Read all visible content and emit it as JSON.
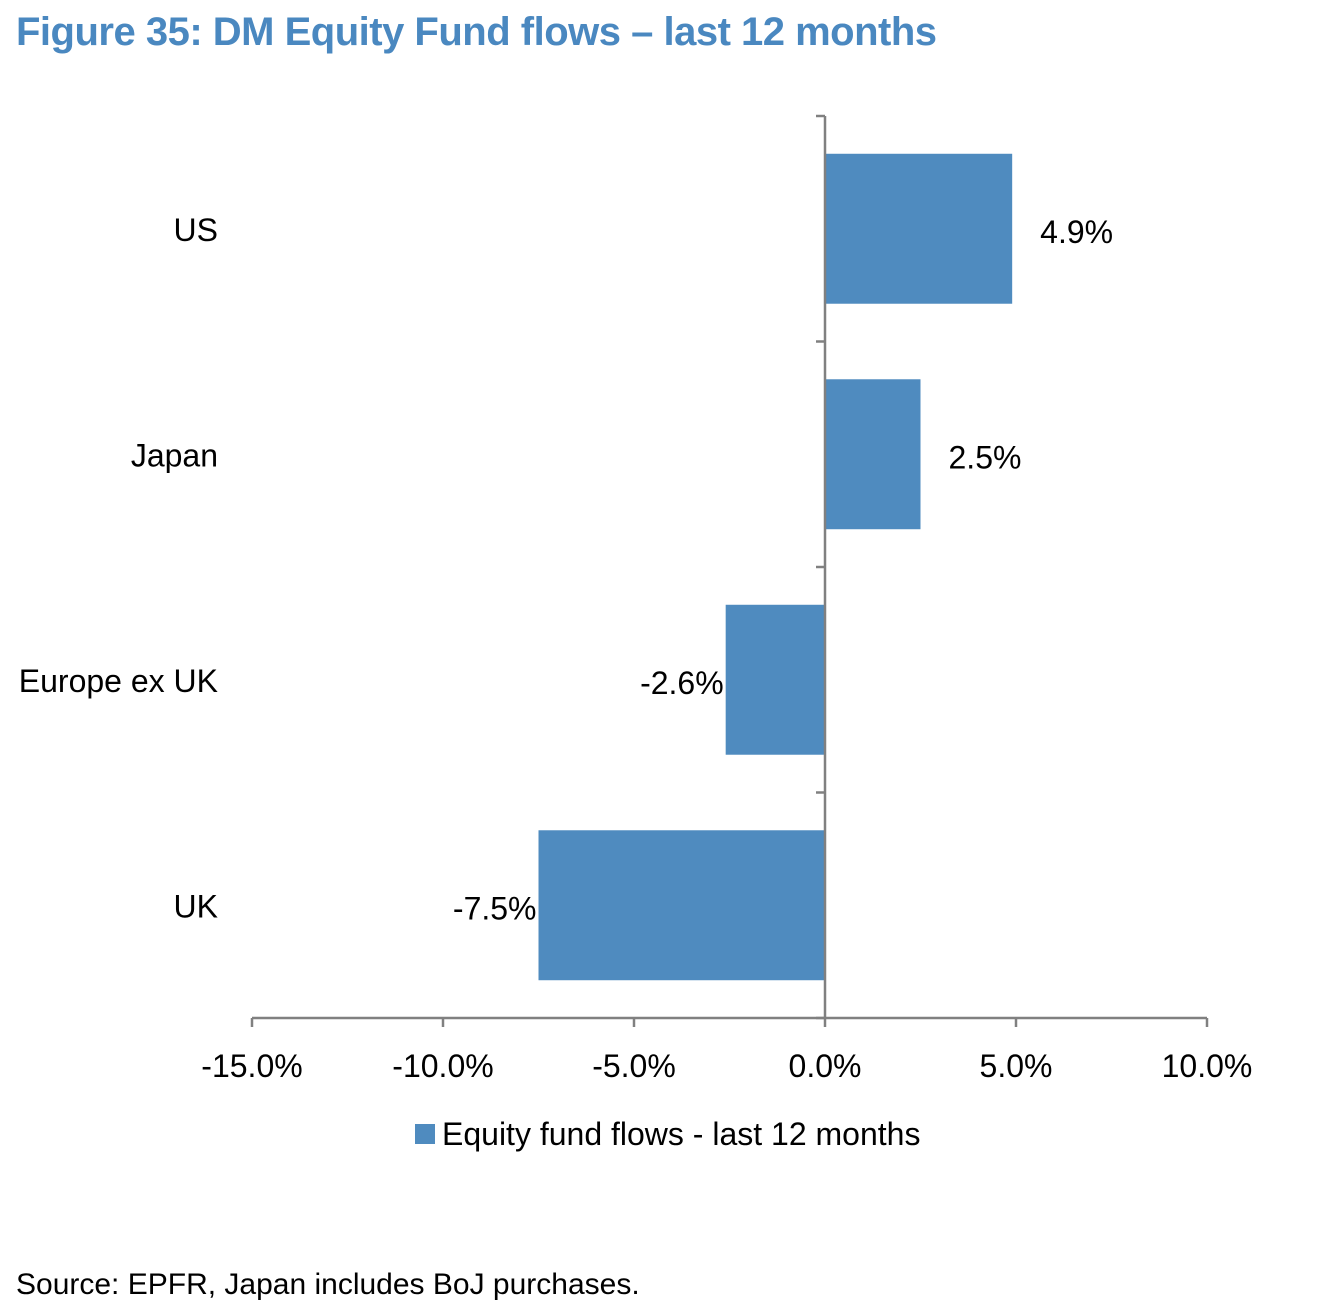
{
  "page": {
    "title": "Figure 35: DM Equity Fund flows – last 12 months",
    "source": "Source: EPFR, Japan includes BoJ purchases."
  },
  "colors": {
    "title": "#4a88c0",
    "bar": "#4f8bbf",
    "axis": "#808080"
  },
  "chart_data": {
    "type": "bar",
    "orientation": "horizontal",
    "categories": [
      "US",
      "Japan",
      "Europe ex UK",
      "UK"
    ],
    "series": [
      {
        "name": "Equity fund flows - last 12 months",
        "values": [
          4.9,
          2.5,
          -2.6,
          -7.5
        ],
        "data_labels": [
          "4.9%",
          "2.5%",
          "-2.6%",
          "-7.5%"
        ]
      }
    ],
    "xlim": [
      -15,
      10
    ],
    "x_ticks": [
      -15,
      -10,
      -5,
      0,
      5,
      10
    ],
    "x_tick_labels": [
      "-15.0%",
      "-10.0%",
      "-5.0%",
      "0.0%",
      "5.0%",
      "10.0%"
    ],
    "grid": false,
    "legend_position": "bottom"
  }
}
